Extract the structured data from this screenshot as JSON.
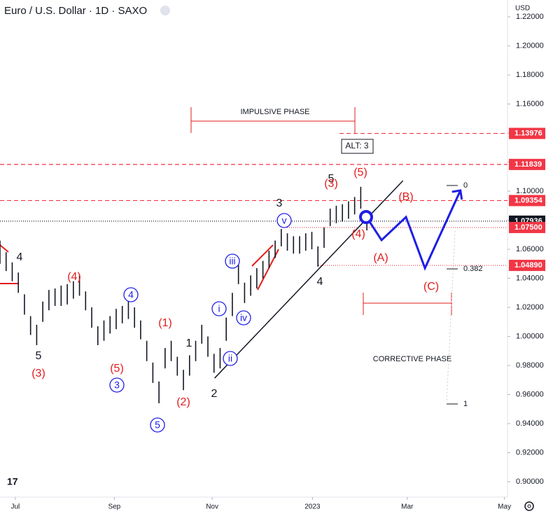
{
  "chart_data": {
    "type": "range-bar",
    "title": "Euro / U.S. Dollar · 1D · SAXO",
    "currency": "USD",
    "color": "#131722",
    "xlim": [
      0,
      83
    ],
    "xticks": [
      {
        "value": 2.5,
        "label": "Jul"
      },
      {
        "value": 18.7,
        "label": "Sep"
      },
      {
        "value": 34.7,
        "label": "Nov"
      },
      {
        "value": 51.1,
        "label": "2023"
      },
      {
        "value": 66.6,
        "label": "Mar"
      },
      {
        "value": 82.5,
        "label": "May"
      }
    ],
    "ylim": [
      0.8894,
      1.2316
    ],
    "yticks": [
      {
        "value": 0.9,
        "label": "0.90000"
      },
      {
        "value": 0.92,
        "label": "0.92000"
      },
      {
        "value": 0.94,
        "label": "0.94000"
      },
      {
        "value": 0.96,
        "label": "0.96000"
      },
      {
        "value": 0.98,
        "label": "0.98000"
      },
      {
        "value": 1.0,
        "label": "1.00000"
      },
      {
        "value": 1.02,
        "label": "1.02000"
      },
      {
        "value": 1.04,
        "label": "1.04000"
      },
      {
        "value": 1.06,
        "label": "1.06000"
      },
      {
        "value": 1.08,
        "label": "1.08000"
      },
      {
        "value": 1.1,
        "label": "1.10000"
      },
      {
        "value": 1.12,
        "label": "1.12000"
      },
      {
        "value": 1.14,
        "label": "1.14000"
      },
      {
        "value": 1.16,
        "label": "1.16000"
      },
      {
        "value": 1.18,
        "label": "1.18000"
      },
      {
        "value": 1.2,
        "label": "1.20000"
      },
      {
        "value": 1.22,
        "label": "1.22000"
      }
    ],
    "high": [
      1.066,
      1.058,
      1.051,
      1.044,
      1.029,
      1.014,
      1.008,
      1.024,
      1.032,
      1.033,
      1.035,
      1.036,
      1.038,
      1.042,
      1.031,
      1.02,
      1.007,
      1.011,
      1.014,
      1.019,
      1.021,
      1.024,
      1.02,
      1.011,
      0.997,
      0.982,
      0.969,
      0.992,
      0.997,
      0.986,
      0.977,
      0.987,
      0.997,
      1.008,
      1.0,
      0.988,
      0.992,
      1.013,
      1.03,
      1.05,
      1.037,
      1.042,
      1.047,
      1.052,
      1.059,
      1.066,
      1.074,
      1.071,
      1.069,
      1.069,
      1.071,
      1.072,
      1.062,
      1.075,
      1.088,
      1.09,
      1.091,
      1.093,
      1.096,
      1.103,
      1.087
    ],
    "low": [
      1.05,
      1.045,
      1.038,
      1.03,
      1.015,
      1.001,
      0.994,
      1.01,
      1.018,
      1.021,
      1.021,
      1.022,
      1.026,
      1.028,
      1.018,
      1.006,
      0.994,
      0.997,
      1.002,
      1.005,
      1.009,
      1.012,
      1.006,
      0.998,
      0.983,
      0.968,
      0.954,
      0.978,
      0.983,
      0.973,
      0.963,
      0.973,
      0.983,
      0.995,
      0.986,
      0.975,
      0.978,
      0.997,
      1.014,
      1.036,
      1.023,
      1.028,
      1.033,
      1.04,
      1.047,
      1.054,
      1.062,
      1.059,
      1.057,
      1.057,
      1.059,
      1.06,
      1.048,
      1.061,
      1.076,
      1.078,
      1.079,
      1.081,
      1.084,
      1.088,
      1.073
    ],
    "levels": [
      {
        "value": 1.13976,
        "label": "1.13976",
        "color": "#f23645"
      },
      {
        "value": 1.11839,
        "label": "1.11839",
        "color": "#f23645"
      },
      {
        "value": 1.09354,
        "label": "1.09354",
        "color": "#f23645"
      },
      {
        "value": 1.07936,
        "label": "1.07936",
        "color": "#131722"
      },
      {
        "value": 1.075,
        "label": "1.07500",
        "color": "#f23645"
      },
      {
        "value": 1.0489,
        "label": "1.04890",
        "color": "#f23645"
      }
    ],
    "fib_levels": [
      {
        "level": 0,
        "value": 1.1039
      },
      {
        "level": 0.382,
        "value": 1.0465
      },
      {
        "level": 1,
        "value": 0.9535
      }
    ],
    "trendline": {
      "color": "#131722",
      "x": [
        35.1,
        65.9
      ],
      "values": [
        0.9713,
        1.1072
      ]
    },
    "projection": {
      "color": "#1e1ee6",
      "x": [
        59.8,
        62.4,
        66.4,
        69.5,
        75.3
      ],
      "values": [
        1.0831,
        1.0663,
        1.0822,
        1.047,
        1.1005
      ]
    },
    "annotations": {
      "impulsive_phase": "IMPULSIVE PHASE",
      "corrective_phase": "CORRECTIVE PHASE",
      "alt": "ALT: 3"
    },
    "wave_labels": {
      "black": {
        "color": "#131722",
        "texts": [
          "4",
          "5",
          "1",
          "2",
          "3",
          "5",
          "4"
        ]
      },
      "red": {
        "color": "#e31c1c",
        "texts": [
          "(4)",
          "(3)",
          "(5)",
          "(1)",
          "(2)",
          "(3)",
          "(5)",
          "(4)",
          "(B)",
          "(A)",
          "(C)"
        ]
      },
      "blue": {
        "color": "#1e1ee6",
        "texts": [
          "4",
          "3",
          "5",
          "i",
          "ii",
          "iii",
          "iv",
          "v"
        ]
      }
    }
  }
}
